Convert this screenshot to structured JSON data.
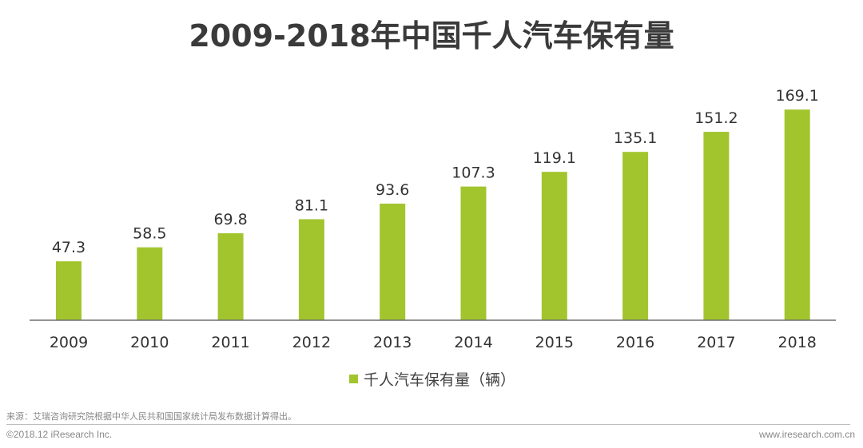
{
  "chart_data": {
    "type": "bar",
    "title": "2009-2018年中国千人汽车保有量",
    "categories": [
      "2009",
      "2010",
      "2011",
      "2012",
      "2013",
      "2014",
      "2015",
      "2016",
      "2017",
      "2018"
    ],
    "series": [
      {
        "name": "千人汽车保有量（辆）",
        "values": [
          47.3,
          58.5,
          69.8,
          81.1,
          93.6,
          107.3,
          119.1,
          135.1,
          151.2,
          169.1
        ],
        "labels": [
          "47.3",
          "58.5",
          "69.8",
          "81.1",
          "93.6",
          "107.3",
          "119.1",
          "135.1",
          "151.2",
          "169.1"
        ]
      }
    ],
    "xlabel": "",
    "ylabel": "",
    "ylim": [
      0,
      180
    ],
    "grid": false,
    "legend_position": "bottom-center",
    "bar_color": "#a2c52e"
  },
  "footer": {
    "source": "来源：艾瑞咨询研究院根据中华人民共和国国家统计局发布数据计算得出。",
    "copyright": "©2018.12 iResearch Inc.",
    "website": "www.iresearch.com.cn"
  }
}
